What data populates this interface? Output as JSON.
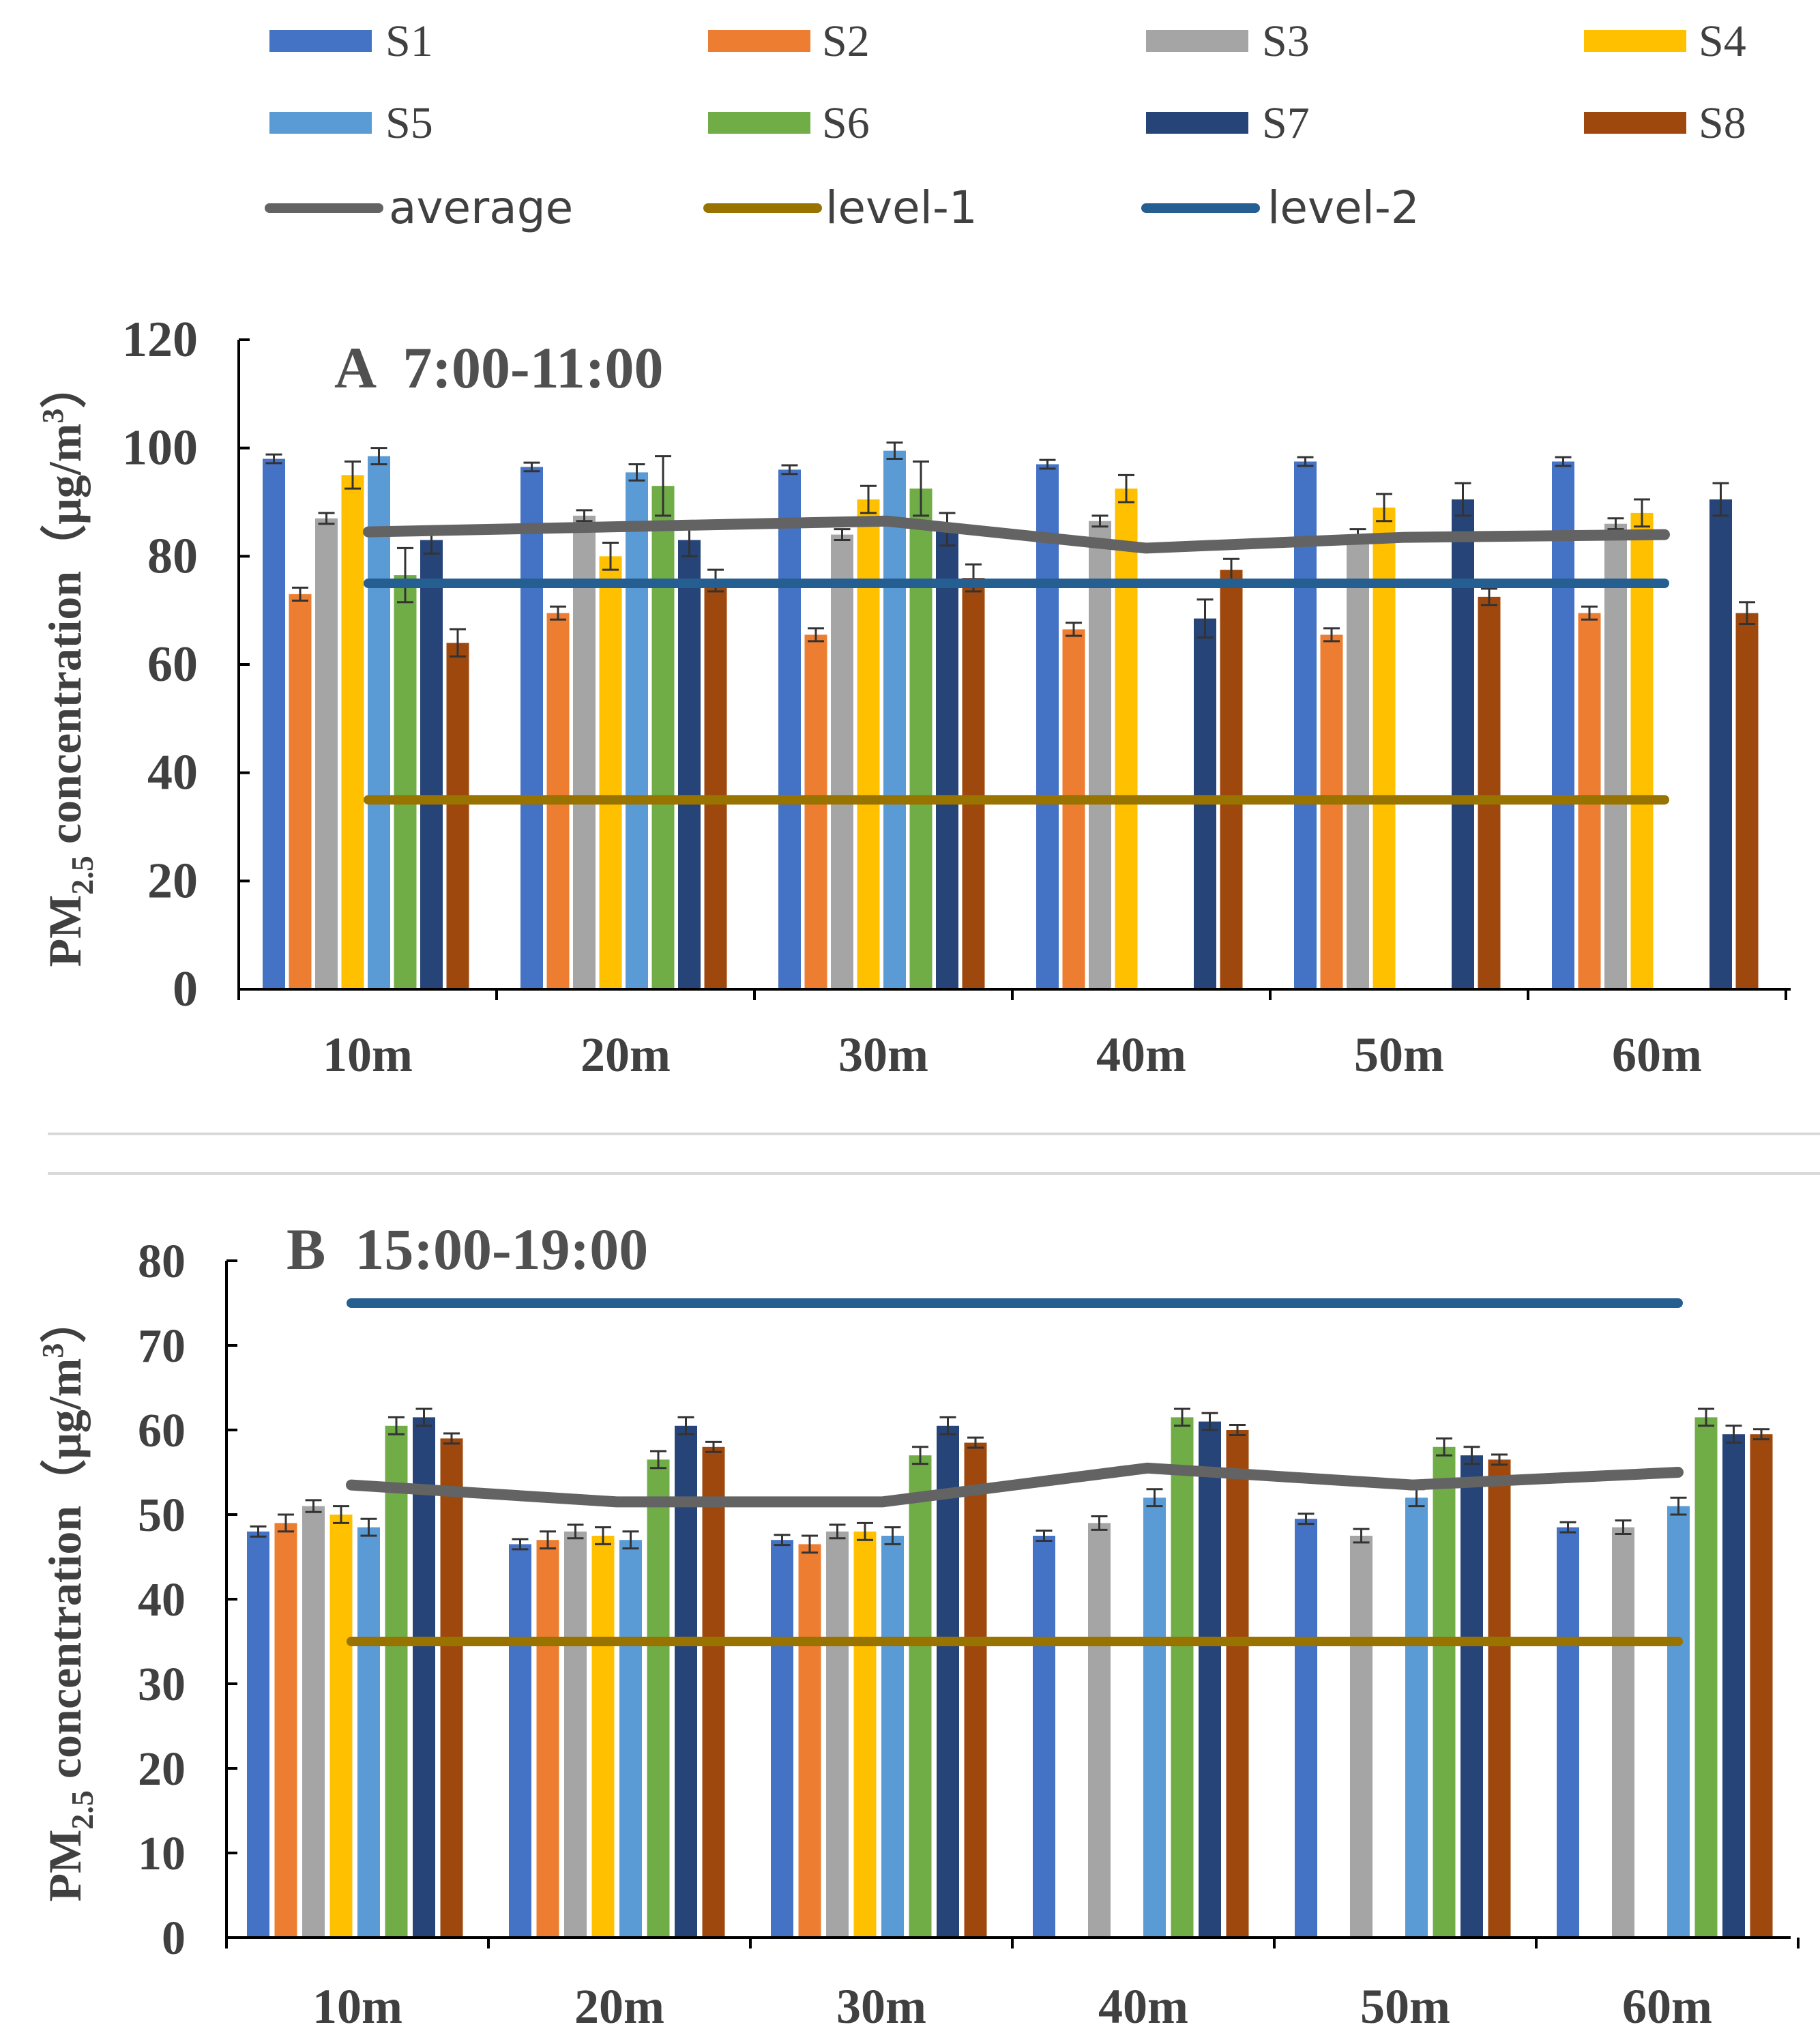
{
  "legend": {
    "items": [
      {
        "key": "S1",
        "label": "S1",
        "type": "bar",
        "color": "#4472c4"
      },
      {
        "key": "S2",
        "label": "S2",
        "type": "bar",
        "color": "#ed7d31"
      },
      {
        "key": "S3",
        "label": "S3",
        "type": "bar",
        "color": "#a5a5a5"
      },
      {
        "key": "S4",
        "label": "S4",
        "type": "bar",
        "color": "#ffc000"
      },
      {
        "key": "S5",
        "label": "S5",
        "type": "bar",
        "color": "#5b9bd5"
      },
      {
        "key": "S6",
        "label": "S6",
        "type": "bar",
        "color": "#70ad47"
      },
      {
        "key": "S7",
        "label": "S7",
        "type": "bar",
        "color": "#264478"
      },
      {
        "key": "S8",
        "label": "S8",
        "type": "bar",
        "color": "#9e480e"
      },
      {
        "key": "average",
        "label": "average",
        "type": "line",
        "color": "#636363"
      },
      {
        "key": "level1",
        "label": "level-1",
        "type": "line",
        "color": "#997300"
      },
      {
        "key": "level2",
        "label": "level-2",
        "type": "line",
        "color": "#255e91"
      }
    ]
  },
  "chart_data": [
    {
      "type": "bar",
      "title": "A  7:00-11:00",
      "ylabel": "PM2.5 concentration（μg/m3）",
      "ylabel_parts": {
        "pm": "PM",
        "sub": "2.5",
        "rest": " concentration（μg/m",
        "sup": "3",
        "close": "）"
      },
      "ylim": [
        0,
        120
      ],
      "yticks": [
        0,
        20,
        40,
        60,
        80,
        100,
        120
      ],
      "categories": [
        "10m",
        "20m",
        "30m",
        "40m",
        "50m",
        "60m"
      ],
      "series": [
        {
          "name": "S1",
          "values": [
            98,
            96.5,
            96,
            97,
            97.5,
            97.5
          ],
          "err": [
            0.8,
            0.8,
            0.8,
            0.8,
            0.8,
            0.8
          ]
        },
        {
          "name": "S2",
          "values": [
            73,
            69.5,
            65.5,
            66.5,
            65.5,
            69.5
          ],
          "err": [
            1.2,
            1.2,
            1.2,
            1.2,
            1.2,
            1.2
          ]
        },
        {
          "name": "S3",
          "values": [
            87,
            87.5,
            84,
            86.5,
            84,
            86
          ],
          "err": [
            1,
            1,
            1,
            1,
            1,
            1
          ]
        },
        {
          "name": "S4",
          "values": [
            95,
            80,
            90.5,
            92.5,
            89,
            88
          ],
          "err": [
            2.5,
            2.5,
            2.5,
            2.5,
            2.5,
            2.5
          ]
        },
        {
          "name": "S5",
          "values": [
            98.5,
            95.5,
            99.5,
            null,
            null,
            null
          ],
          "err": [
            1.5,
            1.5,
            1.5,
            null,
            null,
            null
          ]
        },
        {
          "name": "S6",
          "values": [
            76.5,
            93,
            92.5,
            null,
            null,
            null
          ],
          "err": [
            5,
            5.5,
            5,
            null,
            null,
            null
          ]
        },
        {
          "name": "S7",
          "values": [
            83,
            83,
            85,
            68.5,
            90.5,
            90.5
          ],
          "err": [
            2.5,
            3,
            3,
            3.5,
            3,
            3
          ]
        },
        {
          "name": "S8",
          "values": [
            64,
            75.5,
            76,
            77.5,
            72.5,
            69.5
          ],
          "err": [
            2.5,
            2,
            2.5,
            2,
            1.5,
            2
          ]
        }
      ],
      "average": [
        84.5,
        85.5,
        86.5,
        81.5,
        83.5,
        84
      ],
      "level1": 35,
      "level2": 75
    },
    {
      "type": "bar",
      "title": "B  15:00-19:00",
      "ylabel": "PM2.5 concentration（μg/m3）",
      "ylabel_parts": {
        "pm": "PM",
        "sub": "2.5",
        "rest": " concentration（μg/m",
        "sup": "3",
        "close": "）"
      },
      "ylim": [
        0,
        80
      ],
      "yticks": [
        0,
        10,
        20,
        30,
        40,
        50,
        60,
        70,
        80
      ],
      "categories": [
        "10m",
        "20m",
        "30m",
        "40m",
        "50m",
        "60m"
      ],
      "series": [
        {
          "name": "S1",
          "values": [
            48,
            46.5,
            47,
            47.5,
            49.5,
            48.5
          ],
          "err": [
            0.6,
            0.6,
            0.6,
            0.6,
            0.6,
            0.6
          ]
        },
        {
          "name": "S2",
          "values": [
            49,
            47,
            46.5,
            null,
            null,
            null
          ],
          "err": [
            1,
            1,
            1,
            null,
            null,
            null
          ]
        },
        {
          "name": "S3",
          "values": [
            51,
            48,
            48,
            49,
            47.5,
            48.5
          ],
          "err": [
            0.7,
            0.8,
            0.8,
            0.8,
            0.8,
            0.8
          ]
        },
        {
          "name": "S4",
          "values": [
            50,
            47.5,
            48,
            null,
            null,
            null
          ],
          "err": [
            1,
            1,
            1,
            null,
            null,
            null
          ]
        },
        {
          "name": "S5",
          "values": [
            48.5,
            47,
            47.5,
            52,
            52,
            51
          ],
          "err": [
            1,
            1,
            1,
            1,
            1,
            1
          ]
        },
        {
          "name": "S6",
          "values": [
            60.5,
            56.5,
            57,
            61.5,
            58,
            61.5
          ],
          "err": [
            1,
            1,
            1,
            1,
            1,
            1
          ]
        },
        {
          "name": "S7",
          "values": [
            61.5,
            60.5,
            60.5,
            61,
            57,
            59.5
          ],
          "err": [
            1,
            1,
            1,
            1,
            1,
            1
          ]
        },
        {
          "name": "S8",
          "values": [
            59,
            58,
            58.5,
            60,
            56.5,
            59.5
          ],
          "err": [
            0.6,
            0.6,
            0.6,
            0.6,
            0.6,
            0.6
          ]
        }
      ],
      "average": [
        53.5,
        51.5,
        51.5,
        55.5,
        53.5,
        55
      ],
      "level1": 35,
      "level2": 75
    }
  ]
}
